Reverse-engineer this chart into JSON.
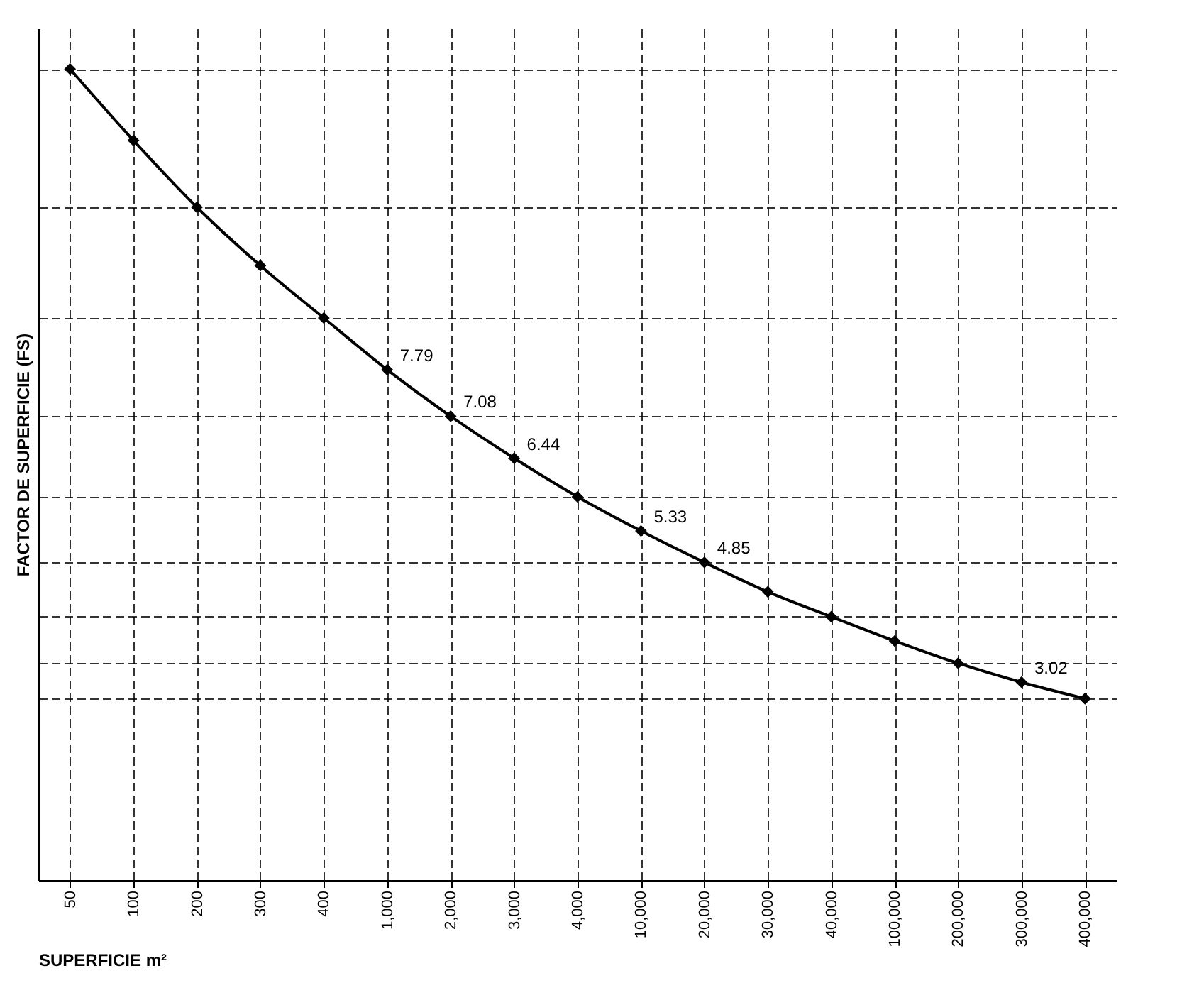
{
  "chart_data": {
    "type": "line",
    "xlabel": "SUPERFICIE m²",
    "ylabel": "FACTOR DE SUPERFICIE (FS)",
    "categories": [
      "50",
      "100",
      "200",
      "300",
      "400",
      "1,000",
      "2,000",
      "3,000",
      "4,000",
      "10,000",
      "20,000",
      "30,000",
      "40,000",
      "100,000",
      "200,000",
      "300,000",
      "400,000"
    ],
    "values": [
      12.38,
      11.29,
      10.27,
      9.38,
      8.58,
      7.79,
      7.08,
      6.44,
      5.85,
      5.33,
      4.85,
      4.4,
      4.02,
      3.65,
      3.31,
      3.02,
      2.77
    ],
    "value_labels": [
      null,
      null,
      null,
      null,
      null,
      "7.79",
      "7.08",
      "6.44",
      null,
      "5.33",
      "4.85",
      null,
      null,
      null,
      null,
      "3.02",
      null
    ],
    "color": "#000000",
    "ylim": [
      0,
      13
    ],
    "grid": true,
    "marker": "diamond",
    "line_style": "solid"
  }
}
